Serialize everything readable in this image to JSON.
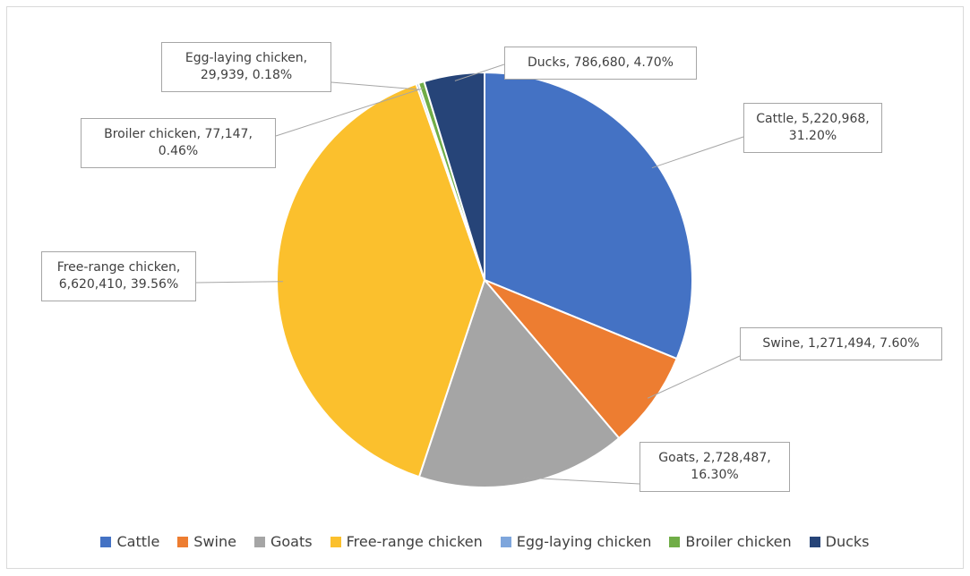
{
  "chart_data": {
    "type": "pie",
    "categories": [
      "Cattle",
      "Swine",
      "Goats",
      "Free-range chicken",
      "Egg-laying chicken",
      "Broiler chicken",
      "Ducks"
    ],
    "values": [
      5220968,
      1271494,
      2728487,
      6620410,
      29939,
      77147,
      786680
    ],
    "value_labels": [
      "Cattle, 5,220,968, 31.20%",
      "Swine, 1,271,494, 7.60%",
      "Goats, 2,728,487, 16.30%",
      "Free-range chicken, 6,620,410, 39.56%",
      "Egg-laying chicken, 29,939, 0.18%",
      "Broiler chicken, 77,147, 0.46%",
      "Ducks, 786,680, 4.70%"
    ],
    "colors": [
      "#4472c4",
      "#ed7d31",
      "#a5a5a5",
      "#fbc02d",
      "#7ea6dc",
      "#70ad47",
      "#264478"
    ],
    "legend": "bottom"
  }
}
